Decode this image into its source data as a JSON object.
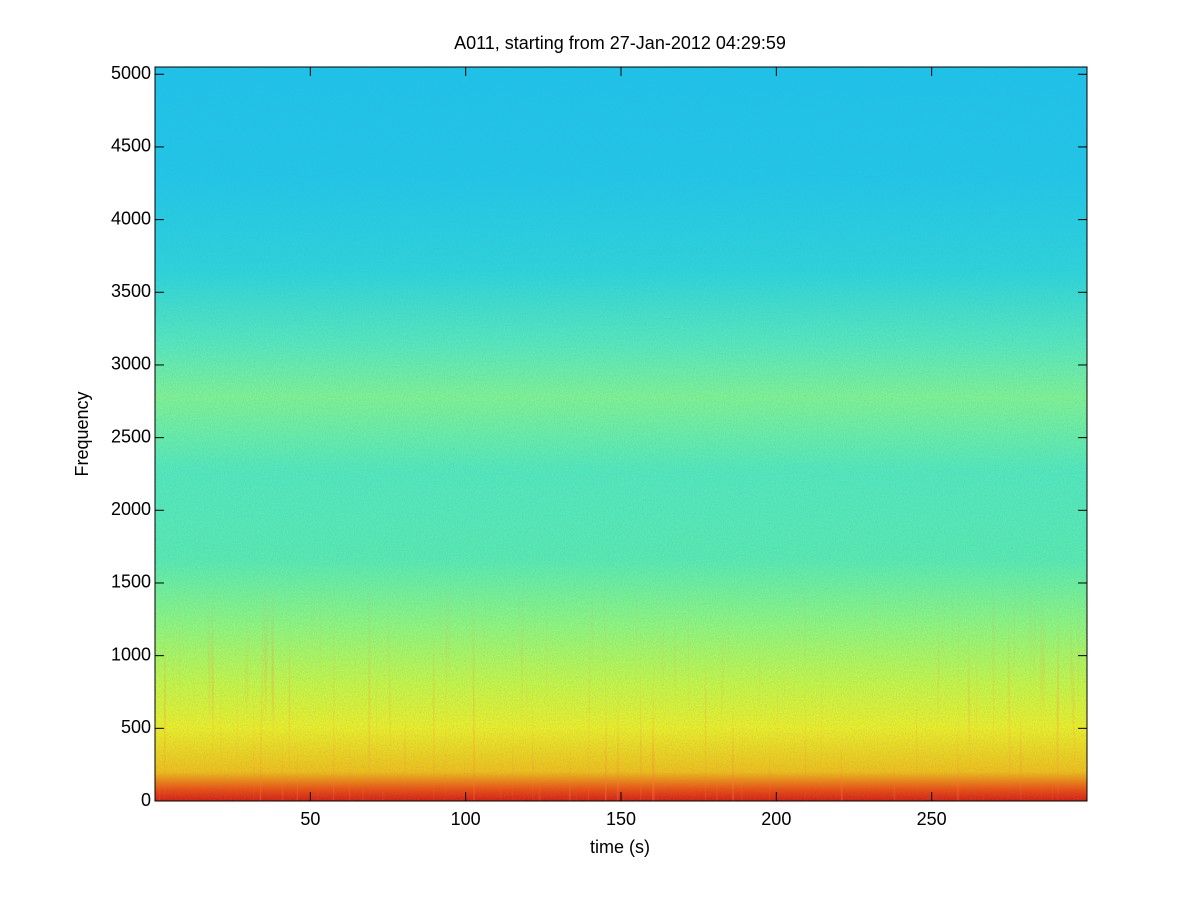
{
  "chart_data": {
    "type": "spectrogram",
    "title": "A011, starting from 27-Jan-2012 04:29:59",
    "xlabel": "time (s)",
    "ylabel": "Frequency",
    "xlim": [
      0,
      300
    ],
    "ylim": [
      0,
      5050
    ],
    "xticks": [
      50,
      100,
      150,
      200,
      250
    ],
    "yticks": [
      0,
      500,
      1000,
      1500,
      2000,
      2500,
      3000,
      3500,
      4000,
      4500,
      5000
    ]
  }
}
